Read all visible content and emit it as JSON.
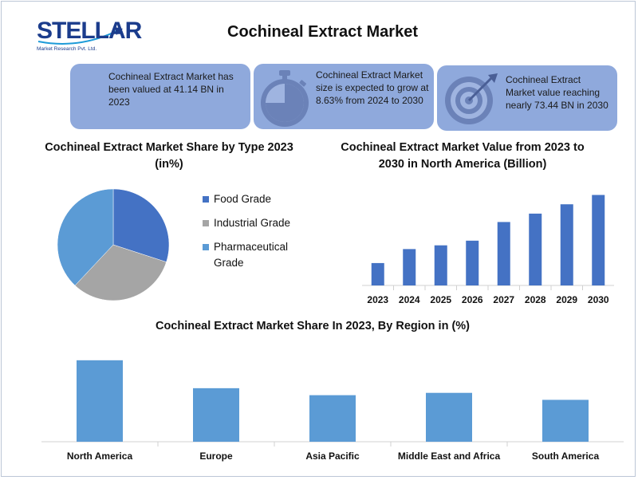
{
  "header": {
    "logo_text": "STELLAR",
    "logo_subtitle": "Market Research Pvt. Ltd.",
    "title": "Cochineal Extract Market"
  },
  "cards": [
    {
      "text": "Cochineal Extract Market has been valued at 41.14 BN in 2023",
      "icon": "none"
    },
    {
      "text": "Cochineal Extract Market size is expected to grow at 8.63% from 2024 to 2030",
      "icon": "stopwatch-icon"
    },
    {
      "text": "Cochineal Extract Market value reaching nearly 73.44 BN in 2030",
      "icon": "target-icon"
    }
  ],
  "colors": {
    "card_bg": "#8fa9dc",
    "food_grade": "#4472c4",
    "industrial_grade": "#a5a5a5",
    "pharmaceutical_grade": "#5b9bd5",
    "na_bars": "#4472c4",
    "region_bars": "#5b9bd5"
  },
  "chart_data": [
    {
      "type": "pie",
      "title": "Cochineal Extract Market  Share by Type 2023 (in%)",
      "categories": [
        "Food Grade",
        "Industrial Grade",
        "Pharmaceutical Grade"
      ],
      "values": [
        30,
        32,
        38
      ],
      "legend": "right"
    },
    {
      "type": "bar",
      "title": "Cochineal Extract Market  Value from 2023 to 2030 in North America (Billion)",
      "categories": [
        "2023",
        "2024",
        "2025",
        "2026",
        "2027",
        "2028",
        "2029",
        "2030"
      ],
      "values": [
        24,
        39,
        43,
        48,
        68,
        77,
        87,
        97
      ],
      "ylim": [
        0,
        100
      ],
      "xlabel": "",
      "ylabel": ""
    },
    {
      "type": "bar",
      "title": "Cochineal Extract Market  Share In 2023, By Region in (%)",
      "categories": [
        "North America",
        "Europe",
        "Asia Pacific",
        "Middle East and Africa",
        "South America"
      ],
      "values": [
        35,
        23,
        20,
        21,
        18
      ],
      "ylim": [
        0,
        37
      ],
      "xlabel": "",
      "ylabel": ""
    }
  ]
}
